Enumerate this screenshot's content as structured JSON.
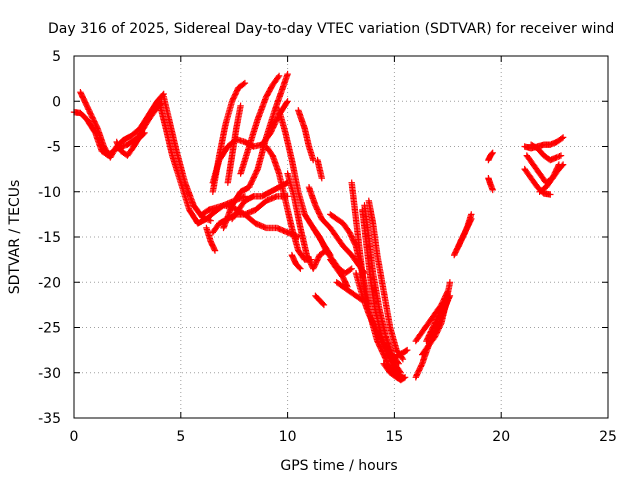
{
  "chart_data": {
    "type": "scatter",
    "title": "Day 316 of 2025, Sidereal Day-to-day VTEC variation (SDTVAR) for receiver wind",
    "xlabel": "GPS time / hours",
    "ylabel": "SDTVAR / TECUs",
    "xlim": [
      0,
      25
    ],
    "ylim": [
      -35,
      5
    ],
    "xticks": [
      0,
      5,
      10,
      15,
      20,
      25
    ],
    "yticks": [
      5,
      0,
      -5,
      -10,
      -15,
      -20,
      -25,
      -30,
      -35
    ],
    "grid": true,
    "marker": "plus",
    "color": "#ff0000",
    "series": [
      {
        "x": [
          0.0,
          0.3,
          0.6,
          1.0,
          1.3,
          1.6,
          2.0,
          2.5,
          3.0,
          3.5,
          3.8,
          4.1
        ],
        "y": [
          -1.2,
          -1.3,
          -2.0,
          -3.5,
          -5.5,
          -6.0,
          -5.2,
          -4.8,
          -4.0,
          -2.0,
          -1.0,
          -0.2
        ]
      },
      {
        "x": [
          0.3,
          0.5,
          0.8,
          1.1,
          1.4,
          1.7,
          2.0,
          2.3,
          2.7,
          3.1,
          3.5,
          3.9,
          4.2
        ],
        "y": [
          1.0,
          0.0,
          -1.5,
          -3.0,
          -5.0,
          -6.2,
          -5.0,
          -4.3,
          -3.8,
          -3.0,
          -1.5,
          0.0,
          0.8
        ]
      },
      {
        "x": [
          2.0,
          2.2,
          2.5,
          2.8,
          3.0,
          3.3
        ],
        "y": [
          -4.5,
          -5.5,
          -6.0,
          -5.0,
          -4.2,
          -3.5
        ]
      },
      {
        "x": [
          4.0,
          4.3,
          4.6,
          5.0,
          5.4,
          5.8,
          6.2,
          6.6,
          7.0,
          7.5,
          8.0
        ],
        "y": [
          -0.2,
          -3.0,
          -6.0,
          -9.0,
          -12.0,
          -13.5,
          -13.0,
          -12.2,
          -11.5,
          -11.0,
          -10.5
        ]
      },
      {
        "x": [
          4.2,
          4.5,
          4.8,
          5.2,
          5.6,
          6.0,
          6.4
        ],
        "y": [
          0.5,
          -2.5,
          -5.5,
          -9.0,
          -11.5,
          -12.8,
          -13.2
        ]
      },
      {
        "x": [
          6.0,
          6.3,
          6.6,
          7.0,
          7.5,
          8.0,
          8.5,
          9.0,
          9.5,
          10.0
        ],
        "y": [
          -12.5,
          -12.0,
          -11.8,
          -11.5,
          -11.8,
          -12.5,
          -12.0,
          -11.0,
          -10.5,
          -10.5
        ]
      },
      {
        "x": [
          6.2,
          6.4,
          6.6
        ],
        "y": [
          -14.0,
          -15.5,
          -16.5
        ]
      },
      {
        "x": [
          6.5,
          6.8,
          7.1,
          7.4,
          7.7,
          8.0
        ],
        "y": [
          -10.0,
          -6.0,
          -2.5,
          0.0,
          1.5,
          2.0
        ]
      },
      {
        "x": [
          6.5,
          6.8,
          7.2,
          7.6,
          8.0,
          8.4,
          8.8,
          9.2,
          9.6,
          10.0
        ],
        "y": [
          -9.0,
          -6.5,
          -5.0,
          -4.2,
          -4.5,
          -5.0,
          -4.8,
          -3.5,
          -1.5,
          0.0
        ]
      },
      {
        "x": [
          6.5,
          6.8,
          7.2,
          7.6,
          8.0,
          8.5,
          9.0,
          9.5,
          10.0,
          10.5
        ],
        "y": [
          -14.5,
          -13.5,
          -13.0,
          -12.5,
          -12.5,
          -13.5,
          -14.0,
          -14.0,
          -14.5,
          -15.0
        ]
      },
      {
        "x": [
          7.0,
          7.4,
          7.8,
          8.2,
          8.6,
          9.0,
          9.4,
          9.7,
          10.0
        ],
        "y": [
          -14.0,
          -11.5,
          -10.0,
          -9.5,
          -7.5,
          -4.0,
          -1.0,
          1.0,
          3.0
        ]
      },
      {
        "x": [
          7.4,
          7.7,
          8.0,
          8.4,
          8.8,
          9.2,
          9.6,
          10.0
        ],
        "y": [
          -13.0,
          -12.0,
          -11.0,
          -10.5,
          -10.5,
          -10.0,
          -9.5,
          -9.0
        ]
      },
      {
        "x": [
          7.2,
          7.4,
          7.6,
          7.8
        ],
        "y": [
          -9.0,
          -6.0,
          -3.0,
          -0.5
        ]
      },
      {
        "x": [
          7.8,
          8.2,
          8.6,
          9.0,
          9.3,
          9.6
        ],
        "y": [
          -8.0,
          -5.0,
          -2.0,
          0.5,
          1.8,
          2.8
        ]
      },
      {
        "x": [
          9.0,
          9.3,
          9.6,
          9.9,
          10.2,
          10.5,
          10.8,
          11.1
        ],
        "y": [
          -5.0,
          -6.0,
          -8.0,
          -11.0,
          -14.0,
          -16.5,
          -17.5,
          -17.5
        ]
      },
      {
        "x": [
          9.6,
          9.9,
          10.2,
          10.5,
          10.8,
          11.2,
          11.6,
          12.0
        ],
        "y": [
          -1.0,
          -3.5,
          -6.5,
          -10.0,
          -12.5,
          -14.0,
          -15.5,
          -17.0
        ]
      },
      {
        "x": [
          10.0,
          10.3,
          10.6,
          10.9,
          11.2,
          11.5,
          11.8
        ],
        "y": [
          -8.0,
          -10.5,
          -14.0,
          -17.0,
          -18.5,
          -17.0,
          -16.5
        ]
      },
      {
        "x": [
          10.2,
          10.4,
          10.6
        ],
        "y": [
          -17.0,
          -18.0,
          -18.5
        ]
      },
      {
        "x": [
          10.5,
          10.8,
          11.0,
          11.2
        ],
        "y": [
          -1.0,
          -3.0,
          -5.0,
          -6.5
        ]
      },
      {
        "x": [
          11.4,
          11.6
        ],
        "y": [
          -6.5,
          -8.5
        ]
      },
      {
        "x": [
          11.3,
          11.5,
          11.7
        ],
        "y": [
          -21.5,
          -22.0,
          -22.5
        ]
      },
      {
        "x": [
          11.2,
          11.5,
          11.8,
          12.1,
          12.4,
          12.7,
          13.0
        ],
        "y": [
          -14.0,
          -15.0,
          -16.5,
          -17.5,
          -18.5,
          -19.0,
          -18.5
        ]
      },
      {
        "x": [
          11.0,
          11.3,
          11.6,
          12.0,
          12.3,
          12.6,
          13.0,
          13.3,
          13.6
        ],
        "y": [
          -9.5,
          -11.5,
          -13.0,
          -14.0,
          -15.0,
          -16.0,
          -17.0,
          -18.0,
          -19.0
        ]
      },
      {
        "x": [
          12.0,
          12.3,
          12.6,
          12.8
        ],
        "y": [
          -17.5,
          -18.5,
          -19.5,
          -20.5
        ]
      },
      {
        "x": [
          12.3,
          12.6,
          12.9,
          13.2,
          13.5
        ],
        "y": [
          -20.0,
          -20.5,
          -21.0,
          -21.5,
          -22.0
        ]
      },
      {
        "x": [
          12.0,
          12.3,
          12.6,
          12.9,
          13.2,
          13.5,
          13.8
        ],
        "y": [
          -12.5,
          -13.0,
          -13.5,
          -14.5,
          -16.0,
          -19.0,
          -22.5
        ]
      },
      {
        "x": [
          13.0,
          13.2,
          13.4,
          13.6,
          13.9,
          14.2,
          14.5,
          14.8,
          15.1,
          15.4
        ],
        "y": [
          -9.0,
          -13.0,
          -17.0,
          -21.0,
          -24.0,
          -26.5,
          -28.0,
          -29.5,
          -30.3,
          -30.5
        ]
      },
      {
        "x": [
          13.2,
          13.5,
          13.8,
          14.1,
          14.4,
          14.7,
          15.0,
          15.3
        ],
        "y": [
          -19.0,
          -21.5,
          -23.5,
          -25.0,
          -26.5,
          -28.0,
          -29.0,
          -30.0
        ]
      },
      {
        "x": [
          13.5,
          13.7,
          13.9,
          14.1,
          14.4,
          14.7,
          15.0,
          15.3
        ],
        "y": [
          -12.0,
          -16.0,
          -20.0,
          -23.0,
          -26.0,
          -28.0,
          -29.5,
          -30.5
        ]
      },
      {
        "x": [
          13.6,
          13.8,
          14.0,
          14.3,
          14.6,
          14.9,
          15.2
        ],
        "y": [
          -11.5,
          -15.0,
          -19.0,
          -23.0,
          -26.0,
          -28.0,
          -29.0
        ]
      },
      {
        "x": [
          13.8,
          14.0,
          14.2,
          14.5,
          14.8,
          15.1,
          15.4
        ],
        "y": [
          -11.0,
          -13.5,
          -17.0,
          -21.0,
          -25.0,
          -27.5,
          -28.5
        ]
      },
      {
        "x": [
          14.6,
          14.8,
          15.0,
          15.2,
          15.4,
          15.6
        ],
        "y": [
          -27.0,
          -28.0,
          -28.5,
          -28.0,
          -27.8,
          -27.5
        ]
      },
      {
        "x": [
          14.5,
          14.8,
          15.1,
          15.3,
          15.5
        ],
        "y": [
          -29.0,
          -30.0,
          -30.5,
          -30.8,
          -30.5
        ]
      },
      {
        "x": [
          16.0,
          16.3,
          16.6,
          16.9,
          17.2,
          17.5
        ],
        "y": [
          -30.5,
          -29.0,
          -27.0,
          -25.5,
          -24.0,
          -22.0
        ]
      },
      {
        "x": [
          16.0,
          16.3,
          16.6,
          16.9,
          17.2,
          17.5
        ],
        "y": [
          -26.5,
          -25.5,
          -24.5,
          -23.5,
          -22.5,
          -21.0
        ]
      },
      {
        "x": [
          16.3,
          16.6,
          16.9,
          17.2,
          17.4,
          17.6
        ],
        "y": [
          -28.0,
          -27.0,
          -26.0,
          -24.5,
          -22.5,
          -20.0
        ]
      },
      {
        "x": [
          16.5,
          16.8,
          17.1,
          17.4,
          17.6
        ],
        "y": [
          -26.5,
          -25.0,
          -23.5,
          -22.5,
          -21.5
        ]
      },
      {
        "x": [
          17.8,
          18.0,
          18.2,
          18.4,
          18.6
        ],
        "y": [
          -17.0,
          -16.0,
          -15.0,
          -14.0,
          -12.5
        ]
      },
      {
        "x": [
          18.0,
          18.2,
          18.4,
          18.6
        ],
        "y": [
          -16.0,
          -15.0,
          -14.0,
          -13.0
        ]
      },
      {
        "x": [
          19.4,
          19.5,
          19.6
        ],
        "y": [
          -6.5,
          -6.0,
          -5.7
        ]
      },
      {
        "x": [
          19.4,
          19.5,
          19.6
        ],
        "y": [
          -8.5,
          -9.2,
          -9.8
        ]
      },
      {
        "x": [
          21.1,
          21.4,
          21.7,
          22.0,
          22.3
        ],
        "y": [
          -7.5,
          -8.5,
          -9.5,
          -10.2,
          -10.3
        ]
      },
      {
        "x": [
          21.2,
          21.5,
          21.8,
          22.1,
          22.4,
          22.7
        ],
        "y": [
          -6.0,
          -7.0,
          -8.0,
          -9.0,
          -8.5,
          -7.0
        ]
      },
      {
        "x": [
          21.4,
          21.7,
          22.0,
          22.3,
          22.6,
          22.8
        ],
        "y": [
          -4.8,
          -5.2,
          -6.0,
          -6.5,
          -6.2,
          -6.0
        ]
      },
      {
        "x": [
          21.1,
          21.4,
          21.7,
          22.0,
          22.3,
          22.6,
          22.9
        ],
        "y": [
          -5.0,
          -5.2,
          -5.0,
          -4.8,
          -4.8,
          -4.5,
          -4.0
        ]
      },
      {
        "x": [
          21.8,
          22.1,
          22.4,
          22.7,
          22.9
        ],
        "y": [
          -10.0,
          -9.5,
          -8.5,
          -7.5,
          -7.0
        ]
      }
    ]
  }
}
